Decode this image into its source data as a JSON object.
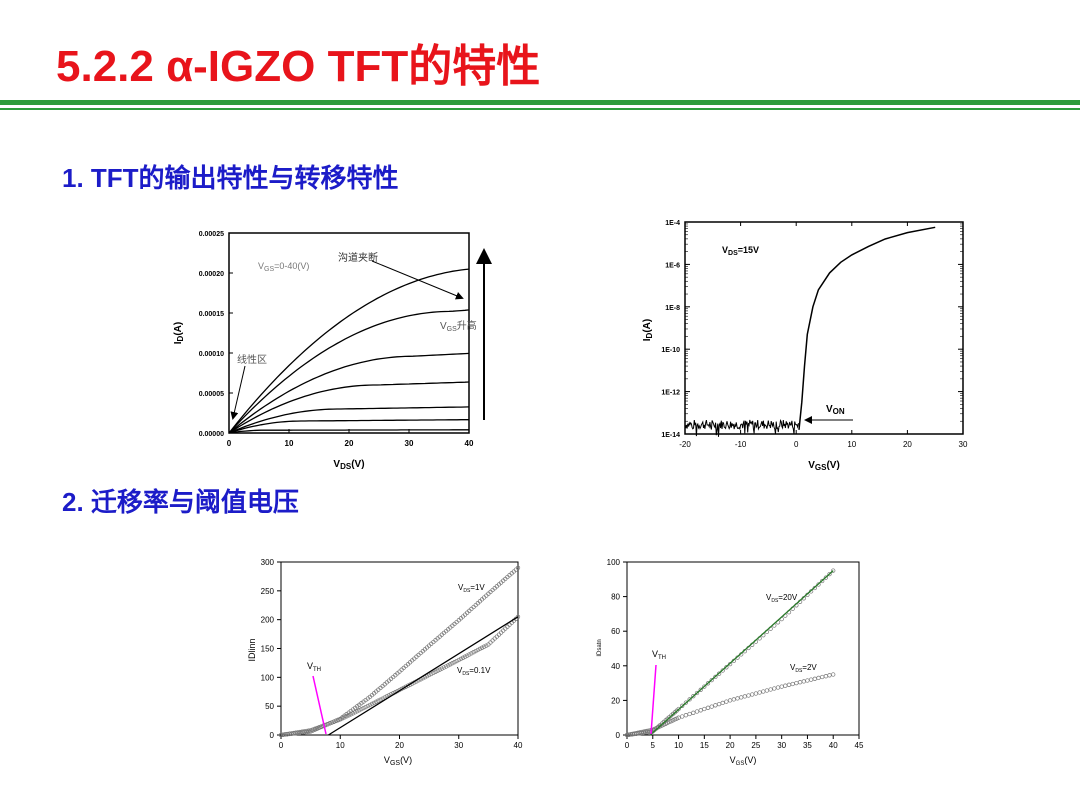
{
  "slide": {
    "title": "5.2.2 α-IGZO TFT的特性",
    "heading1": "1. TFT的输出特性与转移特性",
    "heading2": "2. 迁移率与阈值电压"
  },
  "chart_data": [
    {
      "type": "line",
      "ylabel_main": "I",
      "ylabel_sub": "D",
      "ylabel_unit": "(A)",
      "xlabel_main": "V",
      "xlabel_sub": "DS",
      "xlabel_unit": "(V)",
      "xticks": [
        "0",
        "10",
        "20",
        "30",
        "40"
      ],
      "yticks": [
        "0.00000",
        "0.00005",
        "0.00010",
        "0.00015",
        "0.00020",
        "0.00025"
      ],
      "xlim": [
        0,
        40
      ],
      "ylim": [
        0,
        0.00025
      ],
      "saturation_currents": [
        3.5e-06,
        1.5e-05,
        3e-05,
        6e-05,
        9.6e-05,
        0.000152,
        0.000206
      ],
      "annotations": {
        "vgs_range": "V",
        "vgs_range_sub": "GS",
        "vgs_range_rest": "=0-40(V)",
        "pinch_off": "沟道夹断",
        "vgs_rise_main": "V",
        "vgs_rise_sub": "GS",
        "vgs_rise_rest": "升高",
        "linear_region": "线性区"
      }
    },
    {
      "type": "line",
      "y_scale": "log",
      "ylabel_main": "I",
      "ylabel_sub": "D",
      "ylabel_unit": "(A)",
      "xlabel_main": "V",
      "xlabel_sub": "GS",
      "xlabel_unit": "(V)",
      "xticks": [
        "-20",
        "-10",
        "0",
        "10",
        "20",
        "30"
      ],
      "yticks": [
        "1E-4",
        "1E-6",
        "1E-8",
        "1E-10",
        "1E-12",
        "1E-14"
      ],
      "xlim": [
        -20,
        30
      ],
      "legend_main": "V",
      "legend_sub": "DS",
      "legend_rest": "=15V",
      "von_main": "V",
      "von_sub": "ON",
      "x": [
        0.5,
        1.0,
        1.5,
        2.0,
        3.0,
        4.0,
        6.0,
        8.0,
        10.0,
        13.0,
        16.0,
        20.0,
        25.0
      ],
      "log10_y": [
        -13.8,
        -12.5,
        -10.8,
        -9.3,
        -8.0,
        -7.2,
        -6.4,
        -5.9,
        -5.55,
        -5.15,
        -4.8,
        -4.5,
        -4.25
      ]
    },
    {
      "type": "line",
      "ylabel": "IDlinn",
      "xlabel_main": "V",
      "xlabel_sub": "GS",
      "xlabel_unit": "(V)",
      "xticks": [
        "0",
        "10",
        "20",
        "30",
        "40"
      ],
      "yticks": [
        "0",
        "50",
        "100",
        "150",
        "200",
        "250",
        "300"
      ],
      "xlim": [
        0,
        40
      ],
      "ylim": [
        0,
        300
      ],
      "vth_main": "V",
      "vth_sub": "TH",
      "series": [
        {
          "name": "VDS=1V",
          "label_main": "V",
          "label_sub": "DS",
          "label_rest": "=1V",
          "x": [
            0,
            5,
            10,
            15,
            20,
            25,
            30,
            35,
            40
          ],
          "y": [
            0,
            6,
            28,
            66,
            110,
            155,
            199,
            245,
            290
          ]
        },
        {
          "name": "VDS=0.1V",
          "label_main": "V",
          "label_sub": "DS",
          "label_rest": "=0.1V",
          "x": [
            0,
            5,
            10,
            15,
            20,
            25,
            30,
            35,
            40
          ],
          "y": [
            0,
            8,
            27,
            52,
            78,
            104,
            130,
            157,
            205
          ]
        }
      ]
    },
    {
      "type": "line",
      "ylabel": "IDsatn",
      "xlabel_main": "V",
      "xlabel_sub": "GS",
      "xlabel_unit": "(V)",
      "xticks": [
        "0",
        "5",
        "10",
        "15",
        "20",
        "25",
        "30",
        "35",
        "40",
        "45"
      ],
      "yticks": [
        "0",
        "20",
        "40",
        "60",
        "80",
        "100"
      ],
      "xlim": [
        0,
        45
      ],
      "ylim": [
        0,
        100
      ],
      "vth_main": "V",
      "vth_sub": "TH",
      "series": [
        {
          "name": "VDS=20V",
          "label_main": "V",
          "label_sub": "DS",
          "label_rest": "=20V",
          "x": [
            0,
            5,
            10,
            20,
            30,
            40
          ],
          "y": [
            0,
            2,
            15,
            41,
            67,
            95
          ]
        },
        {
          "name": "VDS=2V",
          "label_main": "V",
          "label_sub": "DS",
          "label_rest": "=2V",
          "x": [
            0,
            5,
            10,
            20,
            30,
            40
          ],
          "y": [
            0,
            3,
            10,
            20,
            28,
            35
          ]
        }
      ]
    }
  ]
}
